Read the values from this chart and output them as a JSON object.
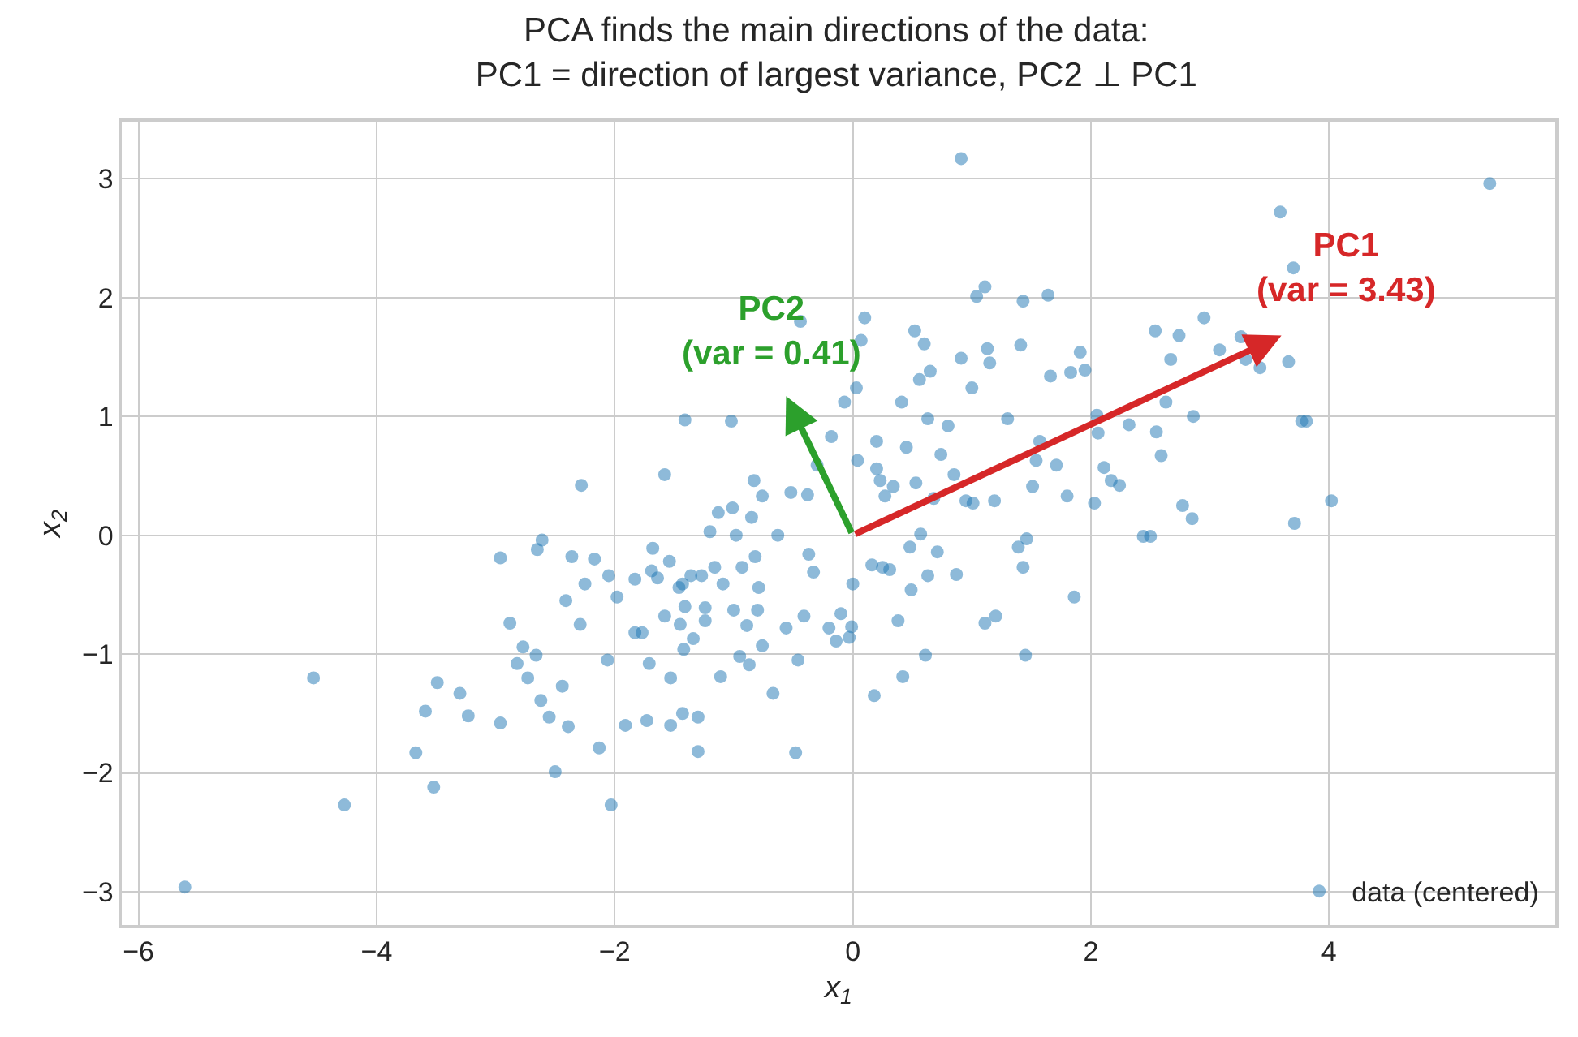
{
  "chart_data": {
    "type": "scatter",
    "title": "PCA finds the main directions of the data:\nPC1 = direction of largest variance, PC2 ⊥ PC1",
    "xlabel": "x$_{1}$",
    "ylabel": "x$_{2}$",
    "xlim": [
      -6.14,
      5.9
    ],
    "ylim": [
      -3.28,
      3.48
    ],
    "xticks": [
      {
        "value": -6,
        "label": "−6"
      },
      {
        "value": -4,
        "label": "−4"
      },
      {
        "value": -2,
        "label": "−2"
      },
      0,
      2,
      4
    ],
    "yticks": [
      {
        "value": -3,
        "label": "−3"
      },
      {
        "value": -2,
        "label": "−2"
      },
      {
        "value": -1,
        "label": "−1"
      },
      0,
      1,
      2,
      3
    ],
    "grid": true,
    "legend": "bottom right",
    "marker": "circle",
    "annotations": [
      "PC1\n(var = 3.43)",
      "PC2\n(var = 0.41)"
    ],
    "series": [
      {
        "name": "data (centered)",
        "color": "#1f77b4",
        "x": [
          -5.61,
          -4.53,
          -4.27,
          -3.67,
          -3.59,
          -3.52,
          -3.49,
          -3.3,
          -3.23,
          -2.96,
          -2.96,
          -2.88,
          -2.82,
          -2.77,
          -2.73,
          -2.66,
          -2.62,
          -2.65,
          -2.61,
          -2.55,
          -2.5,
          -2.44,
          -2.39,
          -2.41,
          -2.36,
          -2.29,
          -2.28,
          -2.25,
          -2.17,
          -2.13,
          -2.06,
          -2.03,
          -2.05,
          -1.98,
          -1.91,
          -1.83,
          -1.83,
          -1.77,
          -1.73,
          -1.71,
          -1.69,
          -1.68,
          -1.64,
          -1.58,
          -1.58,
          -1.54,
          -1.53,
          -1.53,
          -1.46,
          -1.45,
          -1.43,
          -1.43,
          -1.42,
          -1.41,
          -1.41,
          -1.36,
          -1.34,
          -1.3,
          -1.3,
          -1.27,
          -1.24,
          -1.24,
          -1.2,
          -1.16,
          -1.13,
          -1.11,
          -1.09,
          -1.02,
          -1.01,
          -1.0,
          -0.98,
          -0.95,
          -0.93,
          -0.89,
          -0.87,
          -0.85,
          -0.83,
          -0.82,
          -0.8,
          -0.79,
          -0.76,
          -0.76,
          -0.67,
          -0.63,
          -0.56,
          -0.52,
          -0.48,
          -0.46,
          -0.44,
          -0.41,
          -0.38,
          -0.37,
          -0.33,
          -0.3,
          -0.2,
          -0.18,
          -0.14,
          -0.1,
          -0.07,
          -0.03,
          -0.01,
          0.0,
          0.03,
          0.04,
          0.07,
          0.1,
          0.16,
          0.18,
          0.2,
          0.2,
          0.23,
          0.25,
          0.27,
          0.31,
          0.34,
          0.38,
          0.41,
          0.42,
          0.45,
          0.48,
          0.49,
          0.52,
          0.53,
          0.56,
          0.57,
          0.6,
          0.61,
          0.63,
          0.63,
          0.65,
          0.68,
          0.71,
          0.74,
          0.8,
          0.85,
          0.87,
          0.91,
          0.91,
          0.95,
          1.0,
          1.01,
          1.04,
          1.11,
          1.11,
          1.13,
          1.15,
          1.19,
          1.2,
          1.3,
          1.39,
          1.41,
          1.43,
          1.43,
          1.45,
          1.46,
          1.51,
          1.54,
          1.57,
          1.64,
          1.66,
          1.71,
          1.8,
          1.83,
          1.86,
          1.91,
          1.95,
          2.03,
          2.05,
          2.06,
          2.11,
          2.17,
          2.24,
          2.32,
          2.44,
          2.5,
          2.54,
          2.55,
          2.59,
          2.63,
          2.67,
          2.74,
          2.77,
          2.85,
          2.86,
          2.95,
          3.08,
          3.26,
          3.3,
          3.42,
          3.59,
          3.66,
          3.71,
          3.77,
          3.81,
          4.02,
          5.35,
          3.7
        ],
        "values": [
          -2.96,
          -1.2,
          -2.27,
          -1.83,
          -1.48,
          -2.12,
          -1.24,
          -1.33,
          -1.52,
          -0.19,
          -1.58,
          -0.74,
          -1.08,
          -0.94,
          -1.2,
          -1.01,
          -1.39,
          -0.12,
          -0.04,
          -1.53,
          -1.99,
          -1.27,
          -1.61,
          -0.55,
          -0.18,
          -0.75,
          0.42,
          -0.41,
          -0.2,
          -1.79,
          -1.05,
          -2.27,
          -0.34,
          -0.52,
          -1.6,
          -0.37,
          -0.82,
          -0.82,
          -1.56,
          -1.08,
          -0.3,
          -0.11,
          -0.36,
          0.51,
          -0.68,
          -0.22,
          -1.2,
          -1.6,
          -0.44,
          -0.75,
          -0.41,
          -1.5,
          -0.96,
          0.97,
          -0.6,
          -0.34,
          -0.87,
          -1.82,
          -1.53,
          -0.34,
          -0.61,
          -0.72,
          0.03,
          -0.27,
          0.19,
          -1.19,
          -0.41,
          0.96,
          0.23,
          -0.63,
          0.0,
          -1.02,
          -0.27,
          -0.76,
          -1.09,
          0.15,
          0.46,
          -0.18,
          -0.63,
          -0.44,
          0.33,
          -0.93,
          -1.33,
          0.0,
          -0.78,
          0.36,
          -1.83,
          -1.05,
          1.8,
          -0.68,
          0.34,
          -0.16,
          -0.31,
          0.59,
          -0.78,
          0.83,
          -0.89,
          -0.66,
          1.12,
          -0.86,
          -0.77,
          -0.41,
          1.24,
          0.63,
          1.64,
          1.83,
          -0.25,
          -1.35,
          0.79,
          0.56,
          0.46,
          -0.27,
          0.33,
          -0.29,
          0.41,
          -0.72,
          1.12,
          -1.19,
          0.74,
          -0.1,
          -0.46,
          1.72,
          0.44,
          1.31,
          0.01,
          1.61,
          -1.01,
          0.98,
          -0.34,
          1.38,
          0.31,
          -0.14,
          0.68,
          0.92,
          0.51,
          -0.33,
          3.17,
          1.49,
          0.29,
          1.24,
          0.27,
          2.01,
          2.09,
          -0.74,
          1.57,
          1.45,
          0.29,
          -0.68,
          0.98,
          -0.1,
          1.6,
          1.97,
          -0.27,
          -1.01,
          -0.03,
          0.41,
          0.63,
          0.79,
          2.02,
          1.34,
          0.59,
          0.33,
          1.37,
          -0.52,
          1.54,
          1.39,
          0.27,
          1.01,
          0.86,
          0.57,
          0.46,
          0.42,
          0.93,
          -0.01,
          -0.01,
          1.72,
          0.87,
          0.67,
          1.12,
          1.48,
          1.68,
          0.25,
          0.14,
          1.0,
          1.83,
          1.56,
          1.67,
          1.48,
          1.41,
          2.72,
          1.46,
          0.1,
          0.96,
          0.96,
          0.29,
          2.96,
          2.25
        ]
      }
    ]
  }
}
